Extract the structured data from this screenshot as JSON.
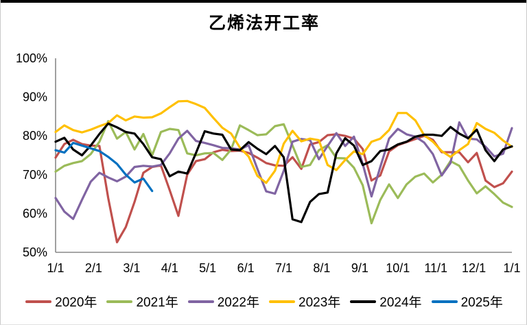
{
  "page": {
    "title": "乙烯法开工率"
  },
  "colors": {
    "axis": "#898989",
    "top_bar": "#000000",
    "background": "#ffffff"
  },
  "chart_data": {
    "type": "line",
    "title": "乙烯法开工率",
    "xlabel": "",
    "ylabel": "",
    "ylim": [
      50,
      100
    ],
    "y_tick_labels": [
      "100%",
      "90%",
      "80%",
      "70%",
      "60%",
      "50%"
    ],
    "y_tick_values": [
      100,
      90,
      80,
      70,
      60,
      50
    ],
    "x_tick_labels": [
      "1/1",
      "2/1",
      "3/1",
      "4/1",
      "5/1",
      "6/1",
      "7/1",
      "8/1",
      "9/1",
      "10/1",
      "11/1",
      "12/1",
      "1/1"
    ],
    "grid": false,
    "legend_position": "bottom",
    "points_per_year": 52,
    "series": [
      {
        "name": "2020年",
        "color": "#C0504D",
        "values": [
          74.4,
          77.9,
          79.0,
          77.9,
          77.5,
          77.4,
          64.0,
          52.6,
          56.5,
          63.0,
          70.5,
          72.0,
          72.4,
          66.0,
          59.4,
          70.0,
          73.5,
          74.0,
          75.8,
          76.4,
          76.1,
          76.2,
          75.6,
          74.4,
          73.0,
          72.4,
          72.3,
          74.5,
          71.5,
          77.8,
          78.4,
          80.2,
          80.4,
          80.0,
          79.3,
          76.6,
          68.5,
          69.8,
          76.0,
          77.6,
          78.4,
          79.2,
          80.0,
          79.0,
          75.8,
          75.8,
          75.8,
          73.2,
          75.6,
          68.5,
          66.8,
          67.8,
          70.8
        ]
      },
      {
        "name": "2021年",
        "color": "#9BBB59",
        "values": [
          70.8,
          72.3,
          73.0,
          73.5,
          75.3,
          78.5,
          83.8,
          79.3,
          81.0,
          76.5,
          80.5,
          75.0,
          81.0,
          81.8,
          81.5,
          75.5,
          75.0,
          75.5,
          75.6,
          73.8,
          76.5,
          82.7,
          81.5,
          80.2,
          80.4,
          82.5,
          83.0,
          77.5,
          72.0,
          72.5,
          76.3,
          77.6,
          74.3,
          74.2,
          71.8,
          67.3,
          57.5,
          63.5,
          67.5,
          64.0,
          67.5,
          69.5,
          70.3,
          68.0,
          70.0,
          73.5,
          72.3,
          68.5,
          65.2,
          67.0,
          65.0,
          62.8,
          61.7
        ]
      },
      {
        "name": "2022年",
        "color": "#8064A2",
        "values": [
          64.0,
          60.5,
          58.6,
          63.5,
          68.2,
          70.5,
          69.3,
          68.3,
          69.5,
          72.0,
          72.3,
          72.1,
          72.5,
          75.5,
          79.3,
          81.3,
          78.7,
          78.2,
          77.6,
          76.9,
          76.8,
          76.5,
          77.6,
          71.5,
          65.7,
          65.1,
          71.0,
          78.5,
          79.2,
          78.9,
          74.0,
          77.4,
          80.7,
          77.4,
          79.8,
          72.8,
          64.4,
          72.0,
          79.3,
          81.8,
          80.4,
          79.8,
          78.3,
          75.3,
          69.8,
          73.0,
          83.5,
          79.3,
          79.1,
          77.2,
          74.7,
          75.4,
          82.0
        ]
      },
      {
        "name": "2023年",
        "color": "#FFC000",
        "values": [
          81.0,
          82.7,
          81.5,
          80.9,
          81.6,
          82.5,
          83.3,
          85.3,
          84.0,
          85.0,
          84.7,
          84.8,
          85.8,
          87.4,
          88.9,
          89.0,
          88.2,
          87.2,
          84.6,
          82.1,
          80.6,
          77.0,
          74.7,
          69.7,
          67.9,
          71.0,
          78.0,
          81.3,
          78.6,
          79.3,
          78.9,
          72.5,
          71.2,
          73.8,
          76.0,
          75.3,
          78.5,
          79.3,
          81.5,
          85.9,
          85.9,
          84.0,
          80.2,
          78.5,
          76.1,
          74.6,
          76.3,
          77.9,
          83.3,
          81.8,
          80.8,
          78.8,
          77.2
        ]
      },
      {
        "name": "2024年",
        "color": "#000000",
        "values": [
          78.5,
          79.5,
          76.5,
          75.0,
          77.5,
          80.5,
          83.2,
          82.2,
          81.0,
          80.6,
          77.9,
          74.5,
          74.0,
          69.6,
          70.8,
          70.3,
          75.6,
          81.2,
          80.6,
          80.3,
          76.5,
          76.3,
          78.4,
          76.7,
          75.3,
          77.4,
          74.5,
          58.5,
          57.8,
          63.0,
          65.0,
          65.4,
          75.5,
          79.4,
          77.5,
          72.5,
          73.5,
          76.1,
          76.5,
          77.8,
          78.5,
          79.8,
          80.3,
          80.3,
          80.0,
          82.3,
          80.6,
          79.4,
          81.6,
          76.3,
          73.5,
          76.5,
          77.3
        ]
      },
      {
        "name": "2025年",
        "color": "#0070C0",
        "values": [
          76.3,
          75.7,
          78.2,
          77.5,
          76.8,
          76.1,
          74.6,
          72.8,
          70.0,
          68.0,
          69.0,
          65.8
        ]
      }
    ]
  }
}
